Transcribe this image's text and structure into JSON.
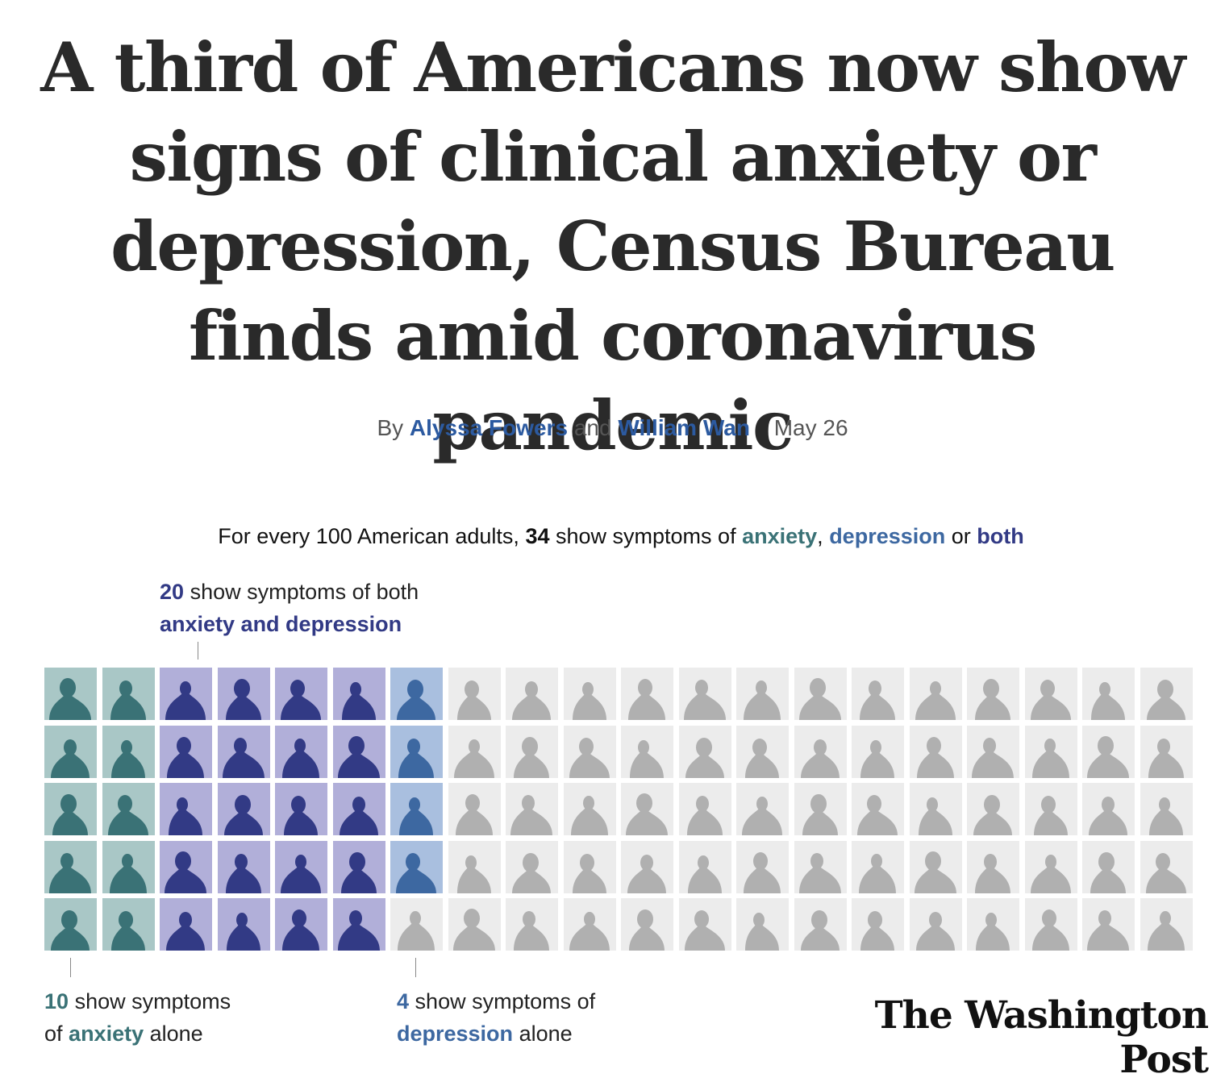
{
  "headline": "A third of Americans now show signs of clinical anxiety or depression, Census Bureau finds amid coronavirus pandemic",
  "byline": {
    "prefix": "By",
    "author1": "Alyssa Fowers",
    "conjunction": "and",
    "author2": "William Wan",
    "date": "May 26"
  },
  "lede": {
    "part1": "For every 100 American adults,",
    "count": "34",
    "part2": "show symptoms of",
    "anxiety": "anxiety",
    "comma": ",",
    "depression": "depression",
    "or": "or",
    "both": "both"
  },
  "annotations": {
    "both": {
      "count": "20",
      "line1": "show symptoms of both",
      "line2": "anxiety and depression"
    },
    "anxiety": {
      "count": "10",
      "line1": "show symptoms",
      "pre": "of",
      "keyword": "anxiety",
      "post": "alone"
    },
    "depression": {
      "count": "4",
      "line1": "show symptoms of",
      "keyword": "depression",
      "post": "alone"
    }
  },
  "grid": {
    "rows": 5,
    "columns": 20,
    "categories": [
      {
        "key": "anxiety",
        "count": 10,
        "bg": "#a9c7c6",
        "fg": "#3a7276"
      },
      {
        "key": "both",
        "count": 20,
        "bg": "#b1afd9",
        "fg": "#323a85"
      },
      {
        "key": "depression",
        "count": 4,
        "bg": "#a9bfdf",
        "fg": "#3d68a1"
      },
      {
        "key": "none",
        "count": 66,
        "bg": "#ececec",
        "fg": "#b0b0b0"
      }
    ]
  },
  "logo": "The Washington Post"
}
